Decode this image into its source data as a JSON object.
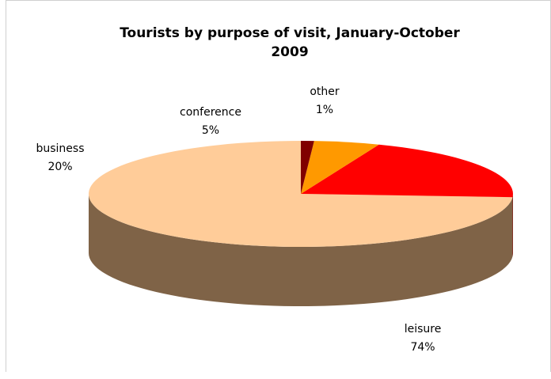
{
  "chart_data": {
    "type": "pie",
    "title_lines": [
      "Tourists by purpose of visit, January-October",
      "2009"
    ],
    "slices": [
      {
        "name": "leisure",
        "label": "leisure",
        "pct_label": "74%",
        "value": 74,
        "top_color": "#FFCC99",
        "side_color": "#7F6347"
      },
      {
        "name": "business",
        "label": "business",
        "pct_label": "20%",
        "value": 20,
        "top_color": "#FF0000",
        "side_color": "#800000"
      },
      {
        "name": "conference",
        "label": "conference",
        "pct_label": "5%",
        "value": 5,
        "top_color": "#FF9900",
        "side_color": "#804C00"
      },
      {
        "name": "other",
        "label": "other",
        "pct_label": "1%",
        "value": 1,
        "top_color": "#800000",
        "side_color": "#400000"
      }
    ]
  }
}
